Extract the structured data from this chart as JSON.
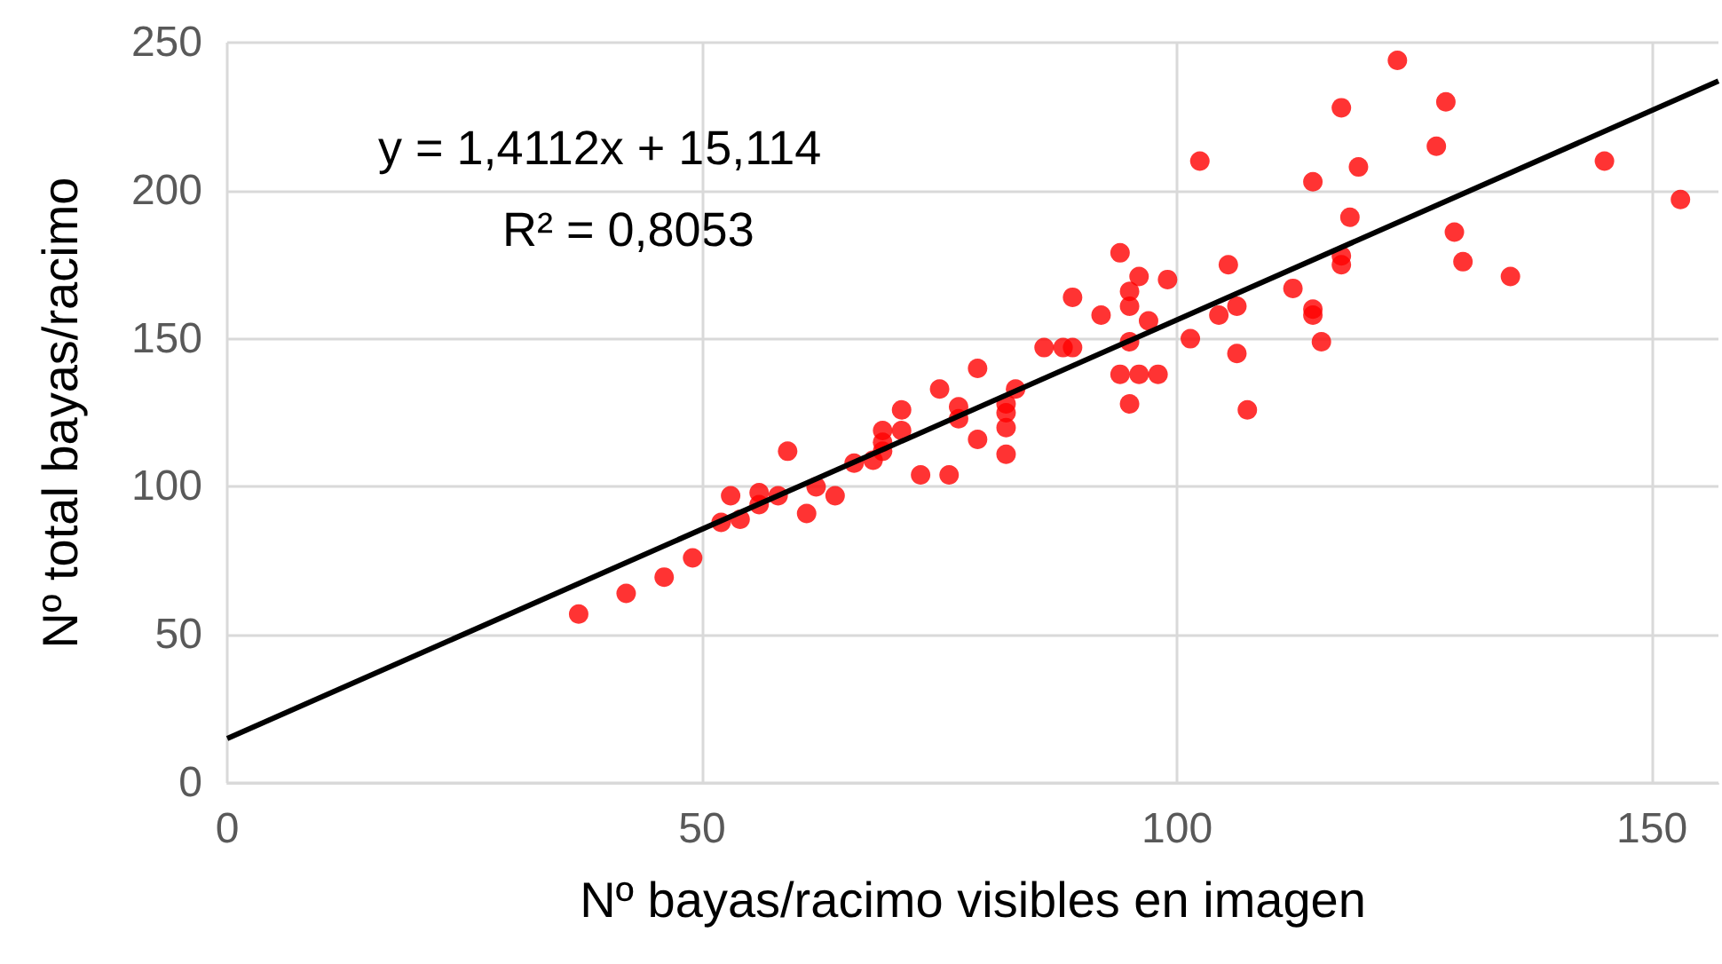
{
  "chart_data": {
    "type": "scatter",
    "xlabel": "Nº bayas/racimo visibles en imagen",
    "ylabel": "Nº total bayas/racimo",
    "annotations": [
      "y = 1,4112x + 15,114",
      "R² = 0,8053"
    ],
    "xlim": [
      0,
      157
    ],
    "xticks": [
      0,
      50,
      100,
      150
    ],
    "ylim": [
      0,
      250
    ],
    "yticks": [
      0,
      50,
      100,
      150,
      200,
      250
    ],
    "grid": true,
    "marker": "circle",
    "series": [
      {
        "color": "#ff0000",
        "x": [
          37,
          42,
          46,
          49,
          52,
          53,
          54,
          56,
          56,
          58,
          59,
          61,
          62,
          64,
          66,
          68,
          69,
          69,
          69,
          71,
          71,
          73,
          75,
          76,
          77,
          77,
          79,
          79,
          82,
          82,
          82,
          82,
          83,
          86,
          88,
          89,
          89,
          92,
          94,
          94,
          95,
          95,
          95,
          95,
          96,
          96,
          97,
          98,
          99,
          101.4,
          102.4,
          104.4,
          105.4,
          106.3,
          106.3,
          107.4,
          112.2,
          114.3,
          114.3,
          114.3,
          115.2,
          117.3,
          117.3,
          117.3,
          118.2,
          119.1,
          123.2,
          127.3,
          128.3,
          129.2,
          130.1,
          135.1,
          145,
          153
        ],
        "values": [
          57,
          64,
          69.5,
          76,
          88,
          97,
          89,
          98,
          94,
          97,
          112,
          91,
          100,
          97,
          108,
          109,
          112,
          119,
          115,
          119,
          126,
          104,
          133,
          104,
          127,
          123,
          116,
          140,
          120,
          125,
          128,
          111,
          133,
          147,
          147,
          147,
          164,
          158,
          179,
          138,
          166,
          161,
          149,
          128,
          171,
          138,
          156,
          138,
          170,
          150,
          210,
          158,
          175,
          161,
          145,
          126,
          167,
          203,
          160,
          158,
          149,
          228,
          178,
          175,
          191,
          208,
          244,
          215,
          230,
          186,
          176,
          171,
          210,
          197
        ]
      },
      {
        "type": "line",
        "color": "#000000",
        "line_style": "solid",
        "marker": "none",
        "x": [
          0,
          157
        ],
        "values": [
          15,
          237
        ]
      }
    ]
  }
}
